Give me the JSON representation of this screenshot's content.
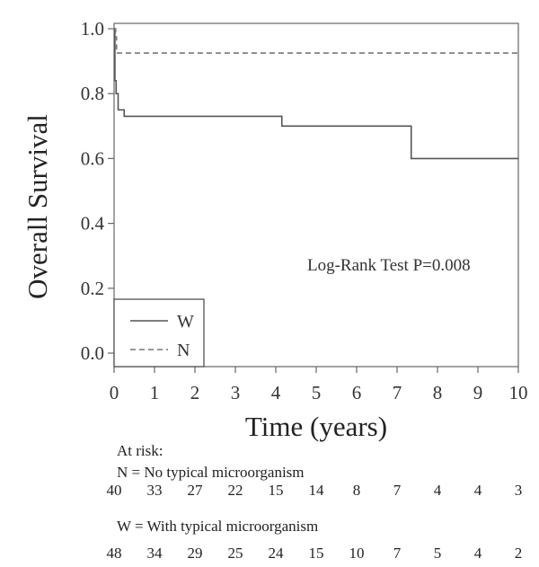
{
  "chart_data": {
    "type": "line",
    "title": "",
    "xlabel": "Time (years)",
    "ylabel": "Overall Survival",
    "xlim": [
      0,
      10
    ],
    "ylim": [
      0.0,
      1.0
    ],
    "x_ticks": [
      "0",
      "1",
      "2",
      "3",
      "4",
      "5",
      "6",
      "7",
      "8",
      "9",
      "10"
    ],
    "y_ticks": [
      "0.0",
      "0.2",
      "0.4",
      "0.6",
      "0.8",
      "1.0"
    ],
    "annotation": "Log-Rank Test P=0.008",
    "legend_position": "bottom-left",
    "series": [
      {
        "name": "W",
        "style": "solid",
        "color": "#555555",
        "steps": [
          [
            0,
            1.0
          ],
          [
            0.02,
            0.84
          ],
          [
            0.05,
            0.8
          ],
          [
            0.1,
            0.75
          ],
          [
            0.25,
            0.73
          ],
          [
            4.15,
            0.7
          ],
          [
            7.35,
            0.6
          ],
          [
            10,
            0.6
          ]
        ]
      },
      {
        "name": "N",
        "style": "dashed",
        "color": "#777777",
        "steps": [
          [
            0,
            1.0
          ],
          [
            0.04,
            0.975
          ],
          [
            0.06,
            0.925
          ],
          [
            10,
            0.925
          ]
        ]
      }
    ]
  },
  "risk_table": {
    "heading": "At risk:",
    "groups": [
      {
        "label": "N = No typical microorganism",
        "counts": [
          "40",
          "33",
          "27",
          "22",
          "15",
          "14",
          "8",
          "7",
          "4",
          "4",
          "3"
        ]
      },
      {
        "label": "W = With typical microorganism",
        "counts": [
          "48",
          "34",
          "29",
          "25",
          "24",
          "15",
          "10",
          "7",
          "5",
          "4",
          "2"
        ]
      }
    ]
  }
}
